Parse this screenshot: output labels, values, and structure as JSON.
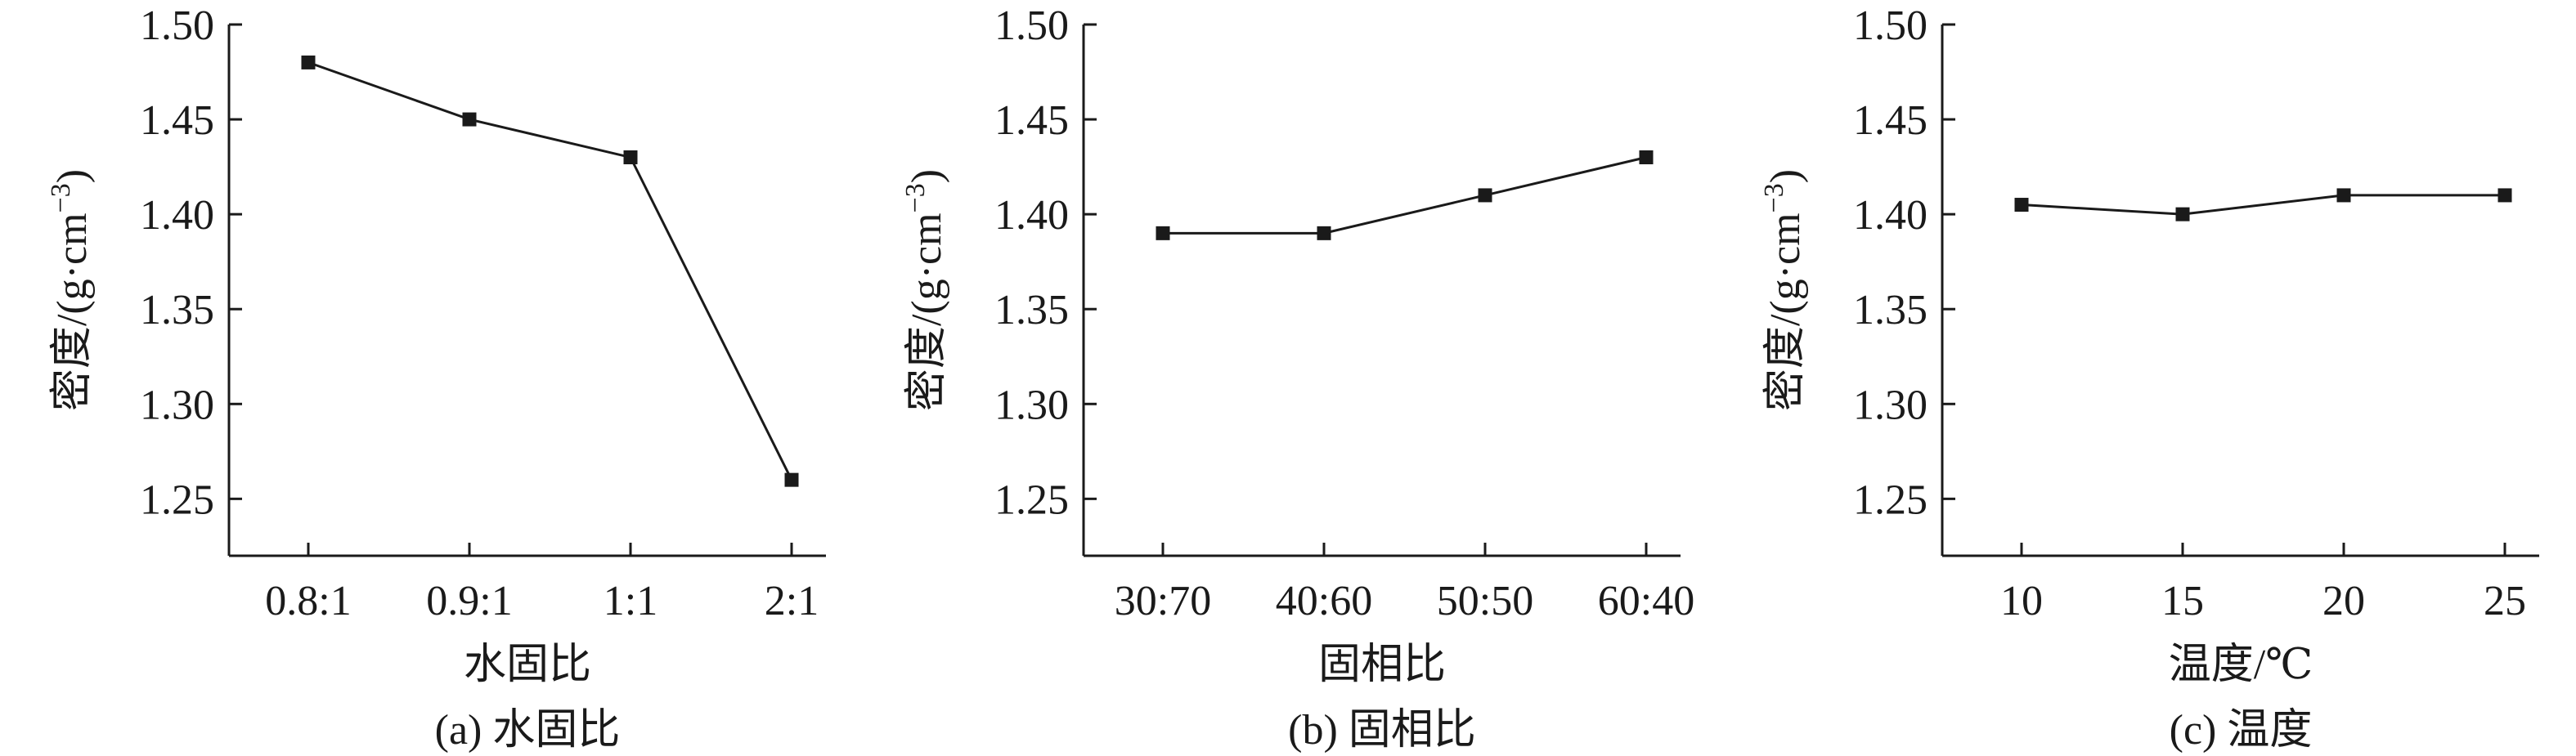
{
  "chart_data": [
    {
      "type": "line",
      "caption": "(a) 水固比",
      "xlabel": "水固比",
      "ylabel": "密度/(g·cm",
      "ylabel_sup": "−3",
      "ylabel_close": ")",
      "categories": [
        "0.8:1",
        "0.9:1",
        "1:1",
        "2:1"
      ],
      "values": [
        1.48,
        1.45,
        1.43,
        1.26
      ],
      "ylim": [
        1.22,
        1.5
      ],
      "yticks": [
        "1.25",
        "1.30",
        "1.35",
        "1.40",
        "1.45",
        "1.50"
      ],
      "grid": false,
      "marker": "square"
    },
    {
      "type": "line",
      "caption": "(b) 固相比",
      "xlabel": "固相比",
      "ylabel": "密度/(g·cm",
      "ylabel_sup": "−3",
      "ylabel_close": ")",
      "categories": [
        "30:70",
        "40:60",
        "50:50",
        "60:40"
      ],
      "values": [
        1.39,
        1.39,
        1.41,
        1.43
      ],
      "ylim": [
        1.22,
        1.5
      ],
      "yticks": [
        "1.25",
        "1.30",
        "1.35",
        "1.40",
        "1.45",
        "1.50"
      ],
      "grid": false,
      "marker": "square"
    },
    {
      "type": "line",
      "caption": "(c) 温度",
      "xlabel": "温度/℃",
      "ylabel": "密度/(g·cm",
      "ylabel_sup": "−3",
      "ylabel_close": ")",
      "categories": [
        "10",
        "15",
        "20",
        "25"
      ],
      "values": [
        1.405,
        1.4,
        1.41,
        1.41
      ],
      "ylim": [
        1.22,
        1.5
      ],
      "yticks": [
        "1.25",
        "1.30",
        "1.35",
        "1.40",
        "1.45",
        "1.50"
      ],
      "grid": false,
      "marker": "square"
    }
  ]
}
